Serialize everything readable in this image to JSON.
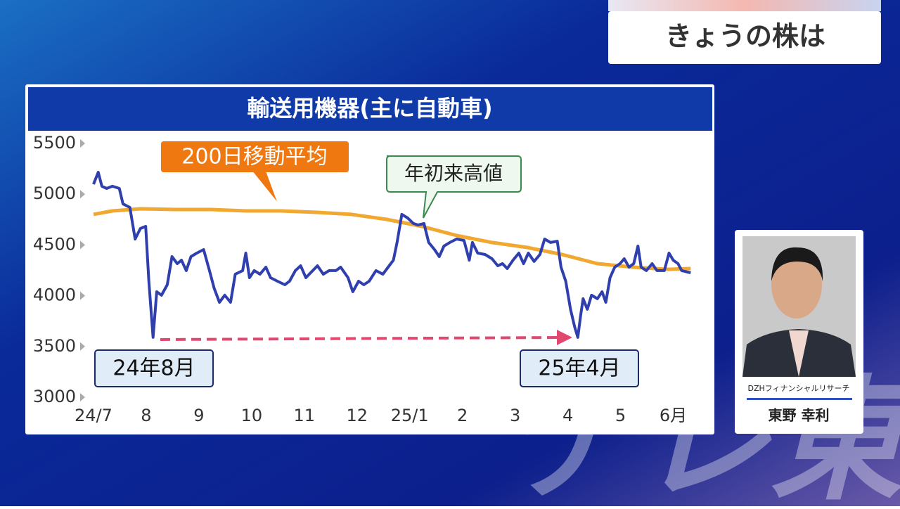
{
  "header": {
    "title": "きょうの株は"
  },
  "chart_data": {
    "type": "line",
    "title": "輸送用機器(主に自動車)",
    "xlim": [
      -1.2,
      11.7
    ],
    "xticks": [
      {
        "value": 0,
        "label": "24/7"
      },
      {
        "value": 1,
        "label": "8"
      },
      {
        "value": 2,
        "label": "9"
      },
      {
        "value": 3,
        "label": "10"
      },
      {
        "value": 4,
        "label": "11"
      },
      {
        "value": 5,
        "label": "12"
      },
      {
        "value": 6,
        "label": "25/1"
      },
      {
        "value": 7,
        "label": "2"
      },
      {
        "value": 8,
        "label": "3"
      },
      {
        "value": 9,
        "label": "4"
      },
      {
        "value": 10,
        "label": "5"
      },
      {
        "value": 11,
        "label": "6月"
      }
    ],
    "ylim": [
      3000,
      5500
    ],
    "yticks": [
      3000,
      3500,
      4000,
      4500,
      5000,
      5500
    ],
    "series": [
      {
        "color": "#2f3fae",
        "x": [
          0,
          0.09,
          0.16,
          0.25,
          0.36,
          0.49,
          0.56,
          0.69,
          0.79,
          0.89,
          0.99,
          1.05,
          1.13,
          1.2,
          1.29,
          1.4,
          1.49,
          1.59,
          1.67,
          1.76,
          1.85,
          1.96,
          2.09,
          2.2,
          2.29,
          2.39,
          2.49,
          2.6,
          2.69,
          2.83,
          2.89,
          2.96,
          3.05,
          3.16,
          3.27,
          3.36,
          3.49,
          3.63,
          3.72,
          3.83,
          3.93,
          4.03,
          4.16,
          4.25,
          4.36,
          4.47,
          4.6,
          4.69,
          4.83,
          4.92,
          5.03,
          5.13,
          5.23,
          5.36,
          5.49,
          5.59,
          5.69,
          5.76,
          5.85,
          5.96,
          6.07,
          6.16,
          6.27,
          6.36,
          6.47,
          6.56,
          6.65,
          6.76,
          6.89,
          7.03,
          7.13,
          7.19,
          7.29,
          7.43,
          7.56,
          7.67,
          7.76,
          7.85,
          7.96,
          8.07,
          8.16,
          8.25,
          8.36,
          8.47,
          8.56,
          8.67,
          8.8,
          8.87,
          8.96,
          9.05,
          9.13,
          9.19,
          9.24,
          9.29,
          9.37,
          9.45,
          9.56,
          9.65,
          9.72,
          9.8,
          9.89,
          9.99,
          10.07,
          10.16,
          10.25,
          10.33,
          10.39,
          10.49,
          10.6,
          10.69,
          10.83,
          10.92,
          11,
          11.09,
          11.16,
          11.33
        ],
        "values": [
          5098,
          5216,
          5078,
          5057,
          5078,
          5057,
          4904,
          4870,
          4558,
          4662,
          4683,
          4143,
          3589,
          4039,
          4005,
          4108,
          4385,
          4316,
          4350,
          4247,
          4385,
          4420,
          4454,
          4247,
          4073,
          3935,
          4005,
          3935,
          4212,
          4247,
          4420,
          4177,
          4247,
          4212,
          4281,
          4177,
          4143,
          4108,
          4143,
          4247,
          4295,
          4177,
          4247,
          4295,
          4212,
          4247,
          4247,
          4281,
          4177,
          4039,
          4143,
          4108,
          4143,
          4247,
          4212,
          4281,
          4350,
          4524,
          4801,
          4766,
          4711,
          4697,
          4711,
          4524,
          4454,
          4385,
          4489,
          4524,
          4558,
          4544,
          4350,
          4524,
          4420,
          4406,
          4364,
          4295,
          4316,
          4267,
          4350,
          4420,
          4316,
          4420,
          4337,
          4406,
          4558,
          4524,
          4537,
          4281,
          4143,
          3866,
          3693,
          3589,
          3796,
          3970,
          3866,
          4005,
          3970,
          4039,
          3935,
          4177,
          4281,
          4316,
          4364,
          4281,
          4316,
          4489,
          4281,
          4247,
          4316,
          4247,
          4247,
          4420,
          4350,
          4316,
          4247,
          4226
        ]
      },
      {
        "name": "200日移動平均",
        "color": "#f0a830",
        "x": [
          0,
          0.36,
          0.89,
          1.56,
          2.23,
          2.89,
          3.56,
          4.23,
          4.89,
          5.56,
          6.23,
          6.89,
          7.56,
          8.23,
          8.89,
          9.56,
          10.23,
          10.89,
          11.33
        ],
        "values": [
          4801,
          4835,
          4856,
          4849,
          4849,
          4835,
          4835,
          4821,
          4801,
          4752,
          4683,
          4593,
          4524,
          4475,
          4406,
          4316,
          4281,
          4260,
          4267
        ]
      }
    ],
    "annotations": [
      "年初来高値",
      "24年8月",
      "25年4月"
    ]
  },
  "commentator": {
    "company": "DZHフィナンシャルリサーチ",
    "name": "東野 幸利"
  },
  "watermark": "テレ東"
}
